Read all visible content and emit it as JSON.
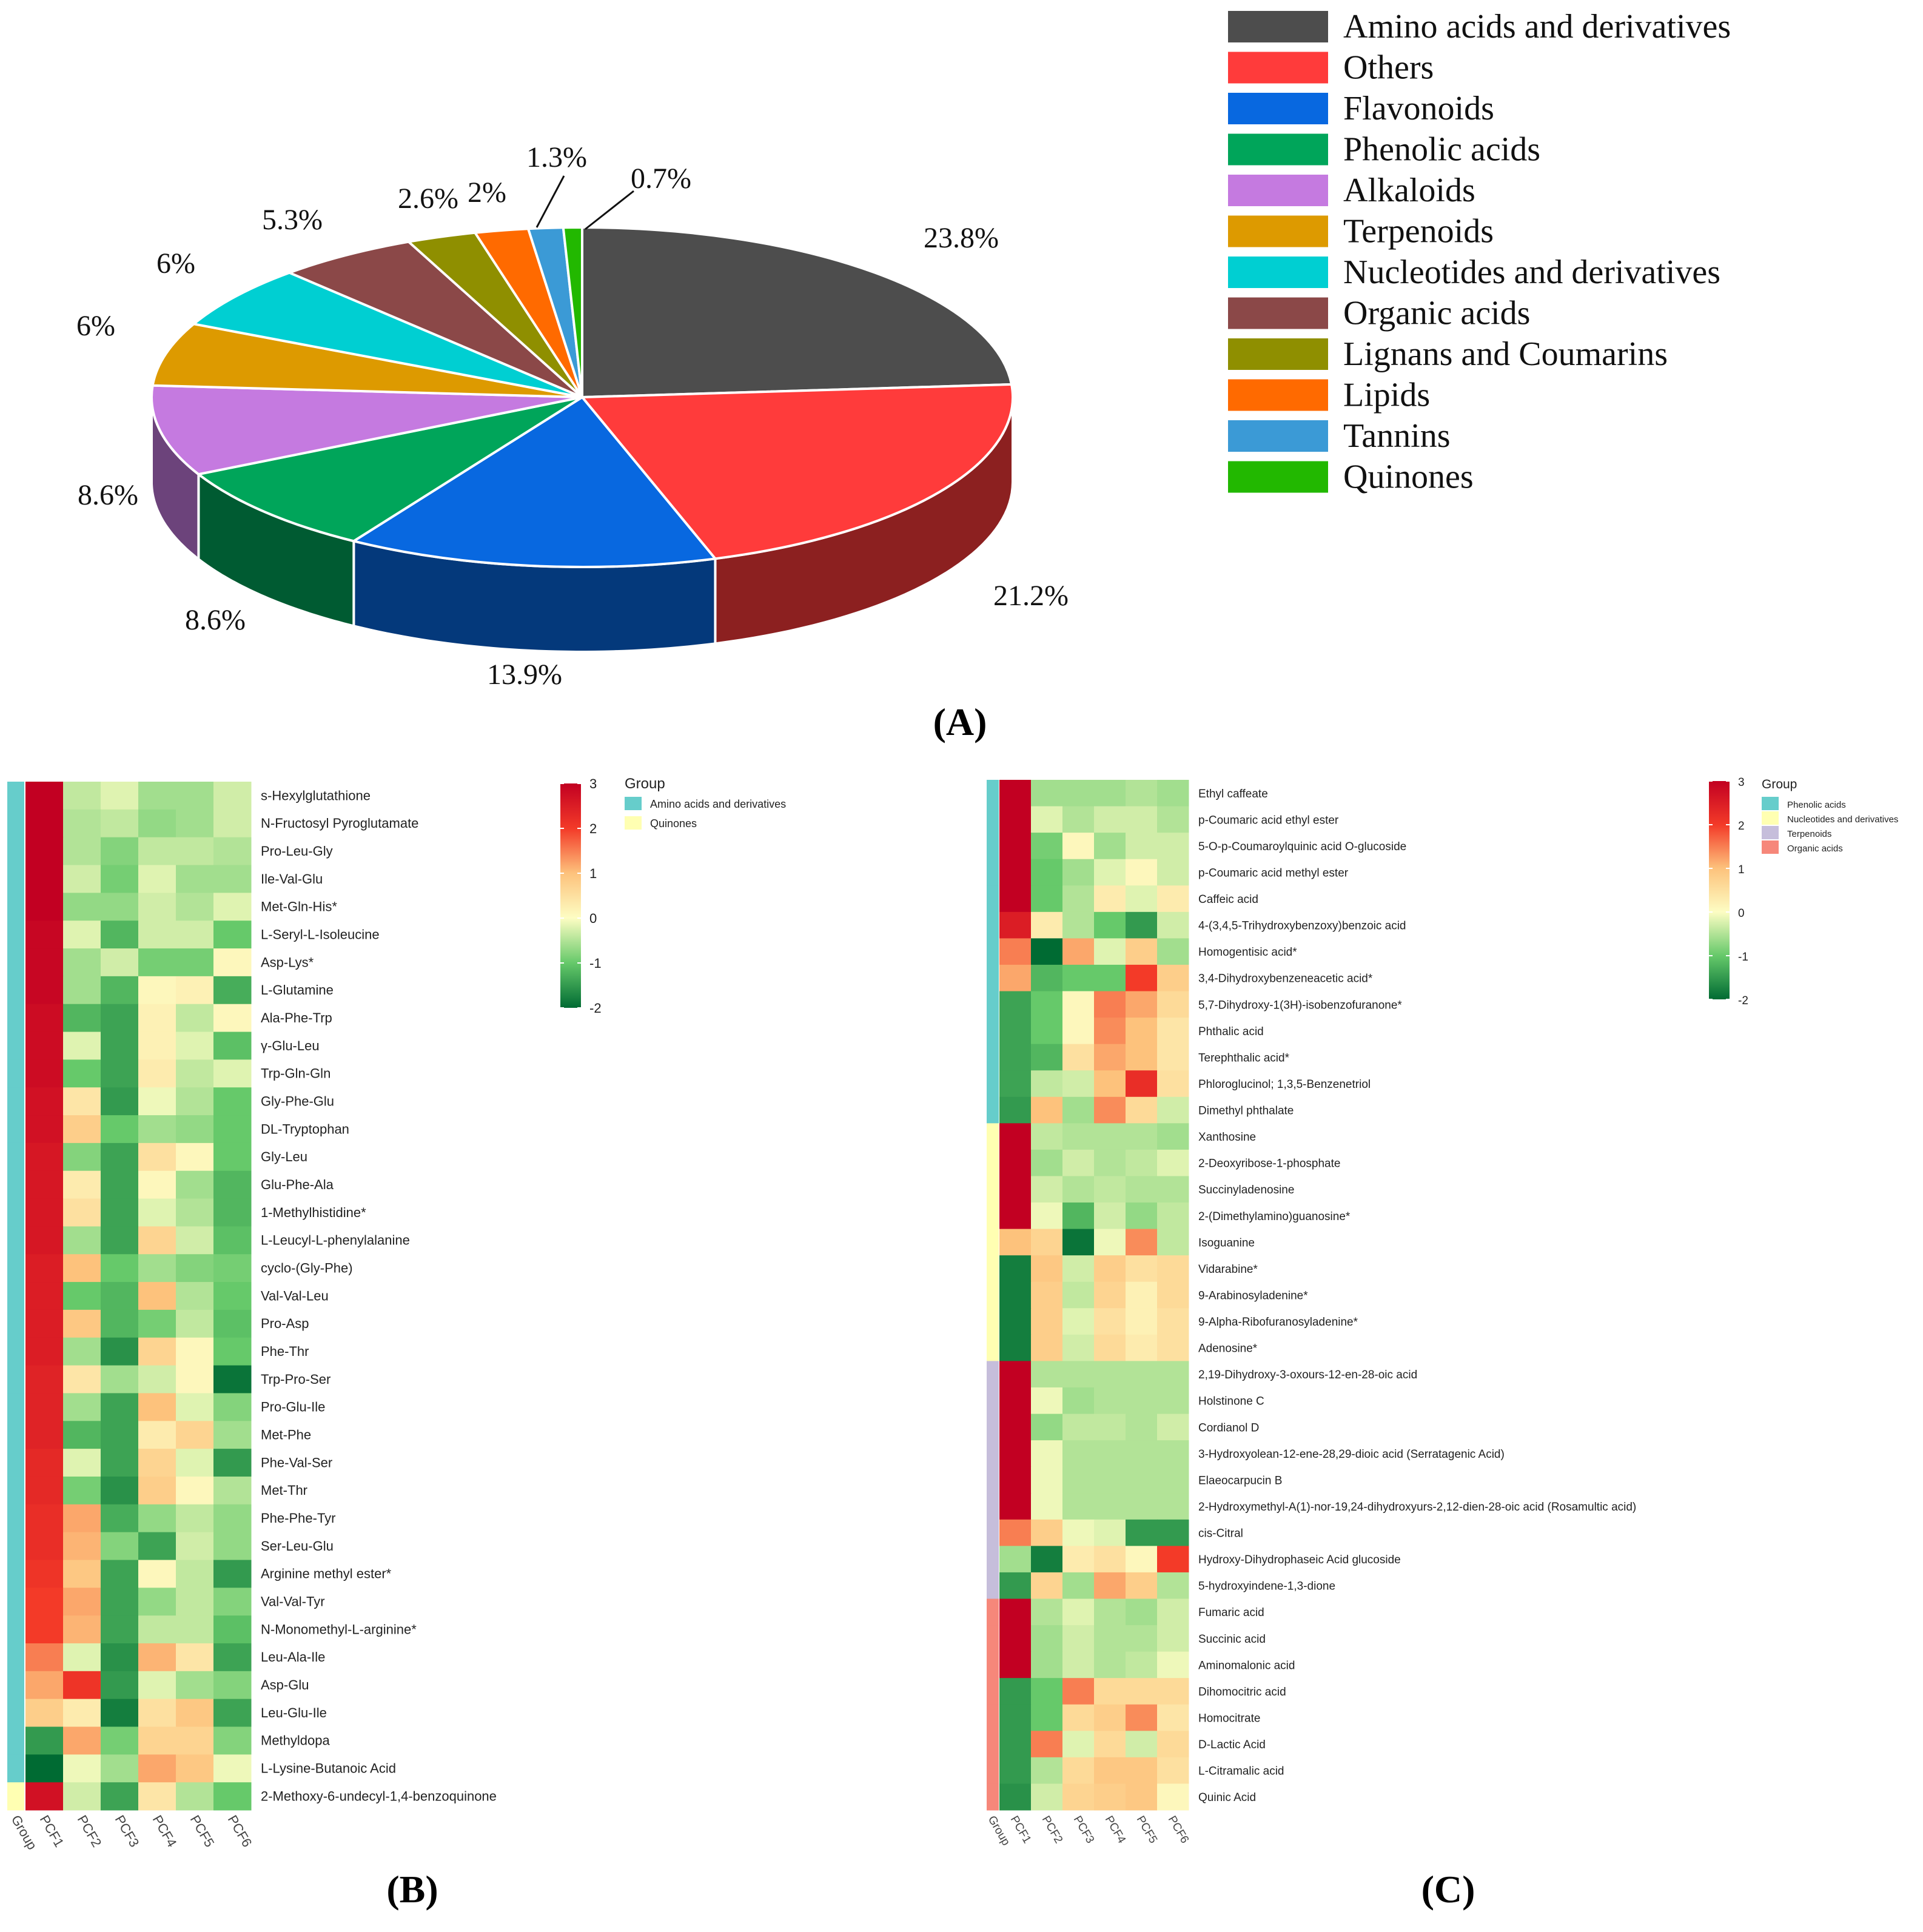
{
  "panel_labels": {
    "a": "(A)",
    "b": "(B)",
    "c": "(C)"
  },
  "chart_data": [
    {
      "type": "pie",
      "panel": "A",
      "style": "3d",
      "categories": [
        "Amino acids and derivatives",
        "Others",
        "Flavonoids",
        "Phenolic acids",
        "Alkaloids",
        "Terpenoids",
        "Nucleotides and derivatives",
        "Organic acids",
        "Lignans and Coumarins",
        "Lipids",
        "Tannins",
        "Quinones"
      ],
      "values": [
        23.8,
        21.2,
        13.9,
        8.6,
        8.6,
        6,
        6,
        5.3,
        2.6,
        2,
        1.3,
        0.7
      ],
      "labels": [
        "23.8%",
        "21.2%",
        "13.9%",
        "8.6%",
        "8.6%",
        "6%",
        "6%",
        "5.3%",
        "2.6%",
        "2%",
        "1.3%",
        "0.7%"
      ],
      "colors": [
        "#4d4d4d",
        "#ff3b3b",
        "#0868e0",
        "#00a55a",
        "#c57ae0",
        "#dd9a00",
        "#00cfd2",
        "#8b4848",
        "#8f8f00",
        "#ff6a00",
        "#3b9ad6",
        "#22b800"
      ],
      "legend_position": "top-right"
    },
    {
      "type": "heatmap",
      "panel": "B",
      "columns": [
        "PCF1",
        "PCF2",
        "PCF3",
        "PCF4",
        "PCF5",
        "PCF6"
      ],
      "group_col_label": "Group",
      "rows": [
        "s-Hexylglutathione",
        "N-Fructosyl Pyroglutamate",
        "Pro-Leu-Gly",
        "Ile-Val-Glu",
        "Met-Gln-His*",
        "L-Seryl-L-Isoleucine",
        "Asp-Lys*",
        "L-Glutamine",
        "Ala-Phe-Trp",
        "γ-Glu-Leu",
        "Trp-Gln-Gln",
        "Gly-Phe-Glu",
        "DL-Tryptophan",
        "Gly-Leu",
        "Glu-Phe-Ala",
        "1-Methylhistidine*",
        "L-Leucyl-L-phenylalanine",
        "cyclo-(Gly-Phe)",
        "Val-Val-Leu",
        "Pro-Asp",
        "Phe-Thr",
        "Trp-Pro-Ser",
        "Pro-Glu-Ile",
        "Met-Phe",
        "Phe-Val-Ser",
        "Met-Thr",
        "Phe-Phe-Tyr",
        "Ser-Leu-Glu",
        "Arginine methyl ester*",
        "Val-Val-Tyr",
        "N-Monomethyl-L-arginine*",
        "Leu-Ala-Ile",
        "Asp-Glu",
        "Leu-Glu-Ile",
        "Methyldopa",
        "L-Lysine-Butanoic Acid",
        "2-Methoxy-6-undecyl-1,4-benzoquinone"
      ],
      "row_groups": [
        0,
        0,
        0,
        0,
        0,
        0,
        0,
        0,
        0,
        0,
        0,
        0,
        0,
        0,
        0,
        0,
        0,
        0,
        0,
        0,
        0,
        0,
        0,
        0,
        0,
        0,
        0,
        0,
        0,
        0,
        0,
        0,
        0,
        0,
        0,
        0,
        1
      ],
      "groups": [
        "Amino acids and derivatives",
        "Quinones"
      ],
      "group_colors": [
        "#66cdcb",
        "#ffffb2"
      ],
      "values": [
        [
          3,
          -0.4,
          -0.2,
          -0.6,
          -0.6,
          -0.3
        ],
        [
          3,
          -0.5,
          -0.4,
          -0.7,
          -0.6,
          -0.3
        ],
        [
          3,
          -0.5,
          -0.8,
          -0.4,
          -0.4,
          -0.5
        ],
        [
          3,
          -0.3,
          -0.9,
          -0.2,
          -0.6,
          -0.6
        ],
        [
          3,
          -0.7,
          -0.7,
          -0.3,
          -0.5,
          -0.2
        ],
        [
          2.9,
          -0.2,
          -1.2,
          -0.3,
          -0.3,
          -1.0
        ],
        [
          2.9,
          -0.6,
          -0.3,
          -0.9,
          -0.9,
          0.1
        ],
        [
          2.9,
          -0.6,
          -1.2,
          0.1,
          0.2,
          -1.3
        ],
        [
          2.8,
          -1.2,
          -1.4,
          0.2,
          -0.4,
          0.1
        ],
        [
          2.8,
          -0.2,
          -1.4,
          0.2,
          -0.2,
          -1.1
        ],
        [
          2.8,
          -1.0,
          -1.4,
          0.3,
          -0.4,
          -0.2
        ],
        [
          2.7,
          0.4,
          -1.5,
          -0.1,
          -0.5,
          -1.0
        ],
        [
          2.7,
          0.8,
          -1.0,
          -0.6,
          -0.7,
          -1.0
        ],
        [
          2.6,
          -0.8,
          -1.4,
          0.5,
          0.1,
          -1.0
        ],
        [
          2.6,
          0.3,
          -1.4,
          0.1,
          -0.6,
          -1.2
        ],
        [
          2.6,
          0.5,
          -1.4,
          -0.2,
          -0.5,
          -1.2
        ],
        [
          2.6,
          -0.6,
          -1.4,
          0.7,
          -0.3,
          -1.1
        ],
        [
          2.5,
          1.0,
          -1.0,
          -0.6,
          -0.8,
          -0.9
        ],
        [
          2.5,
          -1.0,
          -1.2,
          1.0,
          -0.5,
          -1.0
        ],
        [
          2.5,
          0.9,
          -1.2,
          -0.9,
          -0.4,
          -1.1
        ],
        [
          2.5,
          -0.6,
          -1.6,
          0.7,
          0.1,
          -1.0
        ],
        [
          2.4,
          0.4,
          -0.6,
          -0.3,
          0.1,
          -1.9
        ],
        [
          2.4,
          -0.6,
          -1.4,
          1.0,
          -0.2,
          -0.8
        ],
        [
          2.4,
          -1.2,
          -1.4,
          0.3,
          0.7,
          -0.6
        ],
        [
          2.3,
          -0.2,
          -1.4,
          0.7,
          -0.2,
          -1.5
        ],
        [
          2.3,
          -0.9,
          -1.6,
          0.8,
          0.1,
          -0.5
        ],
        [
          2.2,
          1.2,
          -1.3,
          -0.7,
          -0.4,
          -0.7
        ],
        [
          2.2,
          1.1,
          -0.8,
          -1.4,
          -0.3,
          -0.7
        ],
        [
          2.1,
          0.9,
          -1.4,
          0.1,
          -0.4,
          -1.5
        ],
        [
          2.0,
          1.2,
          -1.4,
          -0.7,
          -0.4,
          -0.8
        ],
        [
          2.0,
          1.1,
          -1.4,
          -0.4,
          -0.4,
          -1.1
        ],
        [
          1.5,
          -0.2,
          -1.6,
          1.1,
          0.4,
          -1.4
        ],
        [
          1.2,
          2.1,
          -1.5,
          -0.2,
          -0.6,
          -0.8
        ],
        [
          0.8,
          0.3,
          -1.8,
          0.5,
          0.9,
          -1.4
        ],
        [
          -1.5,
          1.2,
          -0.9,
          0.7,
          0.7,
          -0.8
        ],
        [
          -2.0,
          -0.1,
          -0.6,
          1.2,
          0.9,
          -0.1
        ],
        [
          2.7,
          -0.3,
          -1.4,
          0.4,
          -0.5,
          -1.0
        ]
      ],
      "scale": {
        "min": -2,
        "max": 3,
        "ticks": [
          "3",
          "2",
          "1",
          "0",
          "-1",
          "-2"
        ]
      },
      "legend_title": "Group"
    },
    {
      "type": "heatmap",
      "panel": "C",
      "columns": [
        "PCF1",
        "PCF2",
        "PCF3",
        "PCF4",
        "PCF5",
        "PCF6"
      ],
      "group_col_label": "Group",
      "rows": [
        "Ethyl caffeate",
        "p-Coumaric acid ethyl ester",
        "5-O-p-Coumaroylquinic acid O-glucoside",
        "p-Coumaric acid methyl ester",
        "Caffeic acid",
        "4-(3,4,5-Trihydroxybenzoxy)benzoic acid",
        "Homogentisic acid*",
        "3,4-Dihydroxybenzeneacetic acid*",
        "5,7-Dihydroxy-1(3H)-isobenzofuranone*",
        "Phthalic acid",
        "Terephthalic acid*",
        "Phloroglucinol; 1,3,5-Benzenetriol",
        "Dimethyl phthalate",
        "Xanthosine",
        "2-Deoxyribose-1-phosphate",
        "Succinyladenosine",
        "2-(Dimethylamino)guanosine*",
        "Isoguanine",
        "Vidarabine*",
        "9-Arabinosyladenine*",
        "9-Alpha-Ribofuranosyladenine*",
        "Adenosine*",
        "2,19-Dihydroxy-3-oxours-12-en-28-oic acid",
        "Holstinone C",
        "Cordianol D",
        "3-Hydroxyolean-12-ene-28,29-dioic acid (Serratagenic Acid)",
        "Elaeocarpucin B",
        "2-Hydroxymethyl-A(1)-nor-19,24-dihydroxyurs-2,12-dien-28-oic acid (Rosamultic acid)",
        "cis-Citral",
        "Hydroxy-Dihydrophaseic Acid glucoside",
        "5-hydroxyindene-1,3-dione",
        "Fumaric acid",
        "Succinic acid",
        "Aminomalonic acid",
        "Dihomocitric acid",
        "Homocitrate",
        "D-Lactic Acid",
        "L-Citramalic acid",
        "Quinic Acid"
      ],
      "row_groups": [
        0,
        0,
        0,
        0,
        0,
        0,
        0,
        0,
        0,
        0,
        0,
        0,
        0,
        1,
        1,
        1,
        1,
        1,
        1,
        1,
        1,
        1,
        2,
        2,
        2,
        2,
        2,
        2,
        2,
        2,
        2,
        3,
        3,
        3,
        3,
        3,
        3,
        3,
        3
      ],
      "groups": [
        "Phenolic acids",
        "Nucleotides and derivatives",
        "Terpenoids",
        "Organic acids"
      ],
      "group_colors": [
        "#66cdcb",
        "#ffffb2",
        "#c6bedb",
        "#f6877a"
      ],
      "values": [
        [
          3,
          -0.6,
          -0.6,
          -0.6,
          -0.5,
          -0.6
        ],
        [
          3,
          -0.2,
          -0.5,
          -0.3,
          -0.3,
          -0.5
        ],
        [
          3,
          -0.9,
          0.1,
          -0.6,
          -0.3,
          -0.3
        ],
        [
          3,
          -1.0,
          -0.6,
          -0.2,
          0.1,
          -0.3
        ],
        [
          3,
          -1.0,
          -0.5,
          0.3,
          -0.2,
          0.3
        ],
        [
          2.5,
          0.3,
          -0.5,
          -1.0,
          -1.5,
          -0.3
        ],
        [
          1.5,
          -2,
          1.2,
          -0.2,
          0.8,
          -0.6
        ],
        [
          1.2,
          -1.2,
          -1.0,
          -1.0,
          2.0,
          0.8
        ],
        [
          -1.4,
          -1.0,
          0.1,
          1.5,
          1.2,
          0.6
        ],
        [
          -1.4,
          -1.0,
          0.1,
          1.4,
          1.0,
          0.4
        ],
        [
          -1.4,
          -1.2,
          0.5,
          1.2,
          1.0,
          0.4
        ],
        [
          -1.4,
          -0.4,
          -0.3,
          1.0,
          2.2,
          0.5
        ],
        [
          -1.5,
          1.0,
          -0.6,
          1.4,
          0.6,
          -0.3
        ],
        [
          3,
          -0.4,
          -0.5,
          -0.5,
          -0.5,
          -0.6
        ],
        [
          3,
          -0.6,
          -0.3,
          -0.5,
          -0.4,
          -0.2
        ],
        [
          3,
          -0.3,
          -0.5,
          -0.4,
          -0.5,
          -0.5
        ],
        [
          3,
          -0.1,
          -1.2,
          -0.3,
          -0.7,
          -0.4
        ],
        [
          1.0,
          0.7,
          -1.9,
          -0.1,
          1.4,
          -0.4
        ],
        [
          -1.8,
          0.9,
          -0.3,
          0.8,
          0.5,
          0.6
        ],
        [
          -1.8,
          0.8,
          -0.4,
          0.7,
          0.2,
          0.6
        ],
        [
          -1.8,
          0.8,
          -0.2,
          0.5,
          0.2,
          0.5
        ],
        [
          -1.8,
          0.8,
          -0.3,
          0.6,
          0.3,
          0.5
        ],
        [
          3,
          -0.5,
          -0.5,
          -0.5,
          -0.5,
          -0.5
        ],
        [
          3,
          -0.1,
          -0.6,
          -0.5,
          -0.5,
          -0.5
        ],
        [
          3,
          -0.7,
          -0.4,
          -0.4,
          -0.5,
          -0.3
        ],
        [
          3,
          -0.1,
          -0.5,
          -0.5,
          -0.5,
          -0.5
        ],
        [
          3,
          -0.1,
          -0.5,
          -0.5,
          -0.5,
          -0.5
        ],
        [
          3,
          -0.1,
          -0.5,
          -0.5,
          -0.5,
          -0.5
        ],
        [
          1.5,
          0.8,
          -0.1,
          -0.2,
          -1.5,
          -1.5
        ],
        [
          -0.6,
          -1.8,
          0.3,
          0.5,
          0.1,
          2.0
        ],
        [
          -1.5,
          0.7,
          -0.6,
          1.2,
          0.8,
          -0.5
        ],
        [
          3,
          -0.5,
          -0.2,
          -0.5,
          -0.6,
          -0.3
        ],
        [
          3,
          -0.6,
          -0.3,
          -0.5,
          -0.5,
          -0.3
        ],
        [
          3,
          -0.6,
          -0.3,
          -0.5,
          -0.4,
          -0.1
        ],
        [
          -1.5,
          -1.0,
          1.5,
          0.6,
          0.6,
          0.6
        ],
        [
          -1.5,
          -1.0,
          0.6,
          0.8,
          1.4,
          0.4
        ],
        [
          -1.5,
          1.5,
          -0.2,
          0.6,
          -0.3,
          0.6
        ],
        [
          -1.5,
          -0.5,
          0.6,
          0.9,
          0.9,
          0.5
        ],
        [
          -1.6,
          -0.3,
          0.7,
          0.8,
          0.9,
          0.1
        ]
      ],
      "scale": {
        "min": -2,
        "max": 3,
        "ticks": [
          "3",
          "2",
          "1",
          "0",
          "-1",
          "-2"
        ]
      },
      "legend_title": "Group"
    }
  ]
}
